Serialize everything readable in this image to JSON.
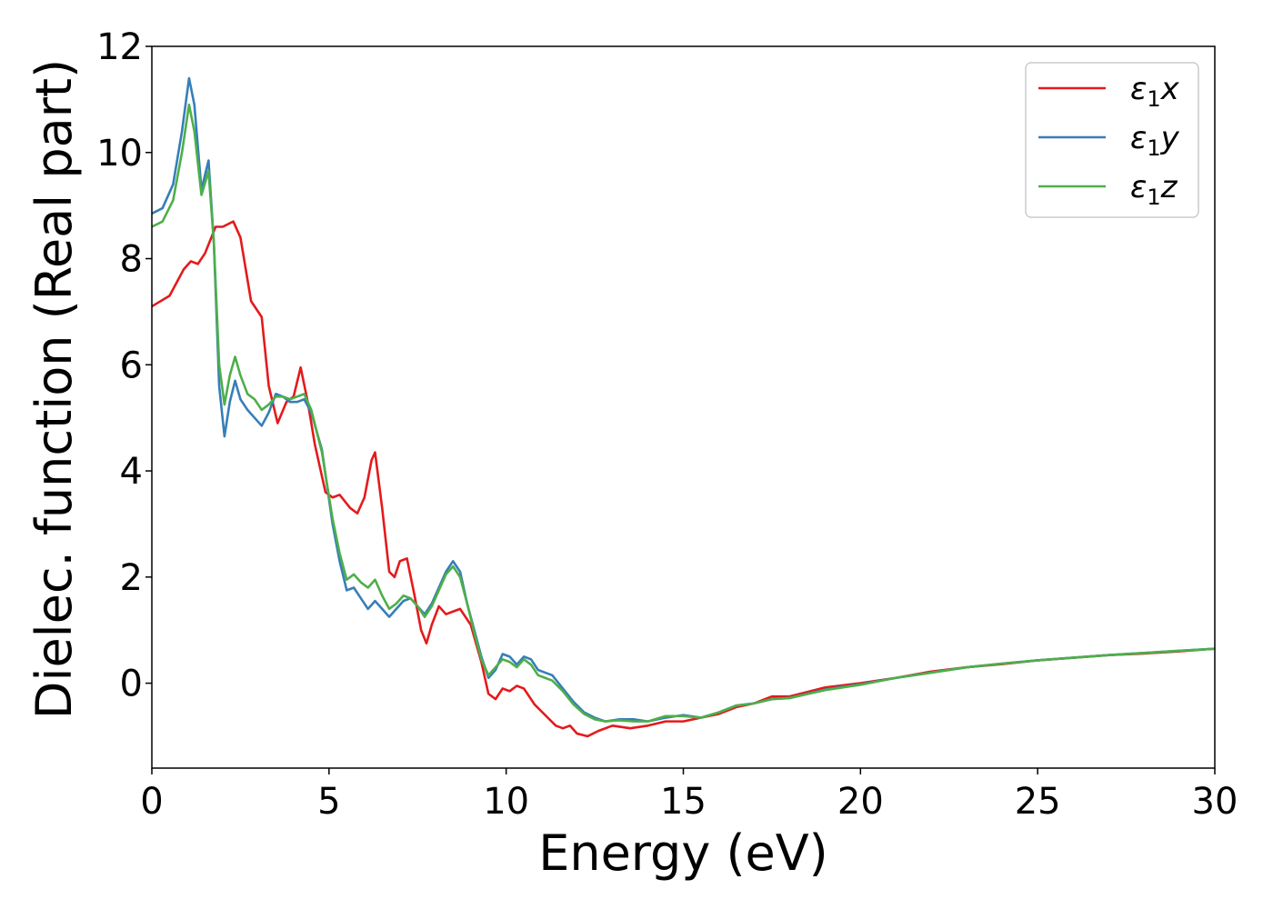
{
  "chart_data": {
    "type": "line",
    "xlabel": "Energy (eV)",
    "ylabel": "Dielec. function (Real part)",
    "xlim": [
      0,
      30
    ],
    "ylim": [
      -1.6,
      12
    ],
    "xticks": [
      0,
      5,
      10,
      15,
      20,
      25,
      30
    ],
    "yticks": [
      0,
      2,
      4,
      6,
      8,
      10,
      12
    ],
    "grid": false,
    "legend_position": "top-right",
    "legend_labels_mathtext": true,
    "series": [
      {
        "name": "ε₁x",
        "legend_base": "ε",
        "legend_sub": "1",
        "legend_var": "x",
        "color": "#e41a1c",
        "points": [
          [
            0,
            7.1
          ],
          [
            0.5,
            7.3
          ],
          [
            0.9,
            7.8
          ],
          [
            1.1,
            7.95
          ],
          [
            1.3,
            7.9
          ],
          [
            1.5,
            8.1
          ],
          [
            1.8,
            8.6
          ],
          [
            2.0,
            8.6
          ],
          [
            2.3,
            8.7
          ],
          [
            2.5,
            8.4
          ],
          [
            2.8,
            7.2
          ],
          [
            3.1,
            6.9
          ],
          [
            3.3,
            5.6
          ],
          [
            3.55,
            4.9
          ],
          [
            3.8,
            5.3
          ],
          [
            4.0,
            5.4
          ],
          [
            4.2,
            5.95
          ],
          [
            4.4,
            5.3
          ],
          [
            4.6,
            4.5
          ],
          [
            4.9,
            3.6
          ],
          [
            5.1,
            3.5
          ],
          [
            5.3,
            3.55
          ],
          [
            5.6,
            3.3
          ],
          [
            5.8,
            3.2
          ],
          [
            6.0,
            3.5
          ],
          [
            6.2,
            4.2
          ],
          [
            6.3,
            4.35
          ],
          [
            6.5,
            3.3
          ],
          [
            6.7,
            2.1
          ],
          [
            6.85,
            2.0
          ],
          [
            7.0,
            2.3
          ],
          [
            7.2,
            2.35
          ],
          [
            7.4,
            1.7
          ],
          [
            7.6,
            1.0
          ],
          [
            7.75,
            0.75
          ],
          [
            7.9,
            1.1
          ],
          [
            8.1,
            1.45
          ],
          [
            8.3,
            1.3
          ],
          [
            8.5,
            1.35
          ],
          [
            8.7,
            1.4
          ],
          [
            9.0,
            1.1
          ],
          [
            9.3,
            0.4
          ],
          [
            9.5,
            -0.2
          ],
          [
            9.7,
            -0.3
          ],
          [
            9.9,
            -0.1
          ],
          [
            10.1,
            -0.15
          ],
          [
            10.3,
            -0.05
          ],
          [
            10.5,
            -0.1
          ],
          [
            10.8,
            -0.4
          ],
          [
            11.1,
            -0.6
          ],
          [
            11.4,
            -0.8
          ],
          [
            11.6,
            -0.85
          ],
          [
            11.8,
            -0.8
          ],
          [
            12.0,
            -0.95
          ],
          [
            12.3,
            -1.0
          ],
          [
            12.6,
            -0.9
          ],
          [
            13.0,
            -0.8
          ],
          [
            13.5,
            -0.85
          ],
          [
            14.0,
            -0.8
          ],
          [
            14.5,
            -0.72
          ],
          [
            15.0,
            -0.72
          ],
          [
            15.5,
            -0.65
          ],
          [
            16.0,
            -0.58
          ],
          [
            16.5,
            -0.45
          ],
          [
            17.0,
            -0.38
          ],
          [
            17.5,
            -0.25
          ],
          [
            18.0,
            -0.25
          ],
          [
            19.0,
            -0.08
          ],
          [
            20.0,
            0.0
          ],
          [
            21.0,
            0.1
          ],
          [
            22.0,
            0.22
          ],
          [
            23.0,
            0.3
          ],
          [
            24.0,
            0.36
          ],
          [
            25.0,
            0.43
          ],
          [
            26.0,
            0.48
          ],
          [
            27.0,
            0.53
          ],
          [
            28.0,
            0.56
          ],
          [
            29.0,
            0.6
          ],
          [
            30.0,
            0.65
          ]
        ]
      },
      {
        "name": "ε₁y",
        "legend_base": "ε",
        "legend_sub": "1",
        "legend_var": "y",
        "color": "#377eb8",
        "points": [
          [
            0,
            8.85
          ],
          [
            0.3,
            8.95
          ],
          [
            0.6,
            9.4
          ],
          [
            0.85,
            10.4
          ],
          [
            1.05,
            11.4
          ],
          [
            1.2,
            10.9
          ],
          [
            1.4,
            9.3
          ],
          [
            1.6,
            9.85
          ],
          [
            1.75,
            8.3
          ],
          [
            1.9,
            5.6
          ],
          [
            2.05,
            4.65
          ],
          [
            2.2,
            5.3
          ],
          [
            2.35,
            5.7
          ],
          [
            2.5,
            5.35
          ],
          [
            2.7,
            5.15
          ],
          [
            2.9,
            5.0
          ],
          [
            3.1,
            4.85
          ],
          [
            3.3,
            5.1
          ],
          [
            3.5,
            5.45
          ],
          [
            3.7,
            5.4
          ],
          [
            3.9,
            5.3
          ],
          [
            4.1,
            5.3
          ],
          [
            4.3,
            5.35
          ],
          [
            4.5,
            5.1
          ],
          [
            4.8,
            4.4
          ],
          [
            5.1,
            3.0
          ],
          [
            5.3,
            2.3
          ],
          [
            5.5,
            1.75
          ],
          [
            5.7,
            1.8
          ],
          [
            5.9,
            1.6
          ],
          [
            6.1,
            1.4
          ],
          [
            6.3,
            1.55
          ],
          [
            6.5,
            1.4
          ],
          [
            6.7,
            1.25
          ],
          [
            6.9,
            1.4
          ],
          [
            7.1,
            1.55
          ],
          [
            7.3,
            1.6
          ],
          [
            7.5,
            1.45
          ],
          [
            7.7,
            1.3
          ],
          [
            7.9,
            1.5
          ],
          [
            8.1,
            1.8
          ],
          [
            8.3,
            2.1
          ],
          [
            8.5,
            2.3
          ],
          [
            8.7,
            2.1
          ],
          [
            8.9,
            1.5
          ],
          [
            9.1,
            1.0
          ],
          [
            9.3,
            0.5
          ],
          [
            9.5,
            0.1
          ],
          [
            9.7,
            0.25
          ],
          [
            9.9,
            0.55
          ],
          [
            10.1,
            0.5
          ],
          [
            10.3,
            0.35
          ],
          [
            10.5,
            0.5
          ],
          [
            10.7,
            0.45
          ],
          [
            10.9,
            0.25
          ],
          [
            11.1,
            0.2
          ],
          [
            11.3,
            0.15
          ],
          [
            11.6,
            -0.1
          ],
          [
            11.9,
            -0.35
          ],
          [
            12.2,
            -0.55
          ],
          [
            12.5,
            -0.65
          ],
          [
            12.8,
            -0.72
          ],
          [
            13.2,
            -0.68
          ],
          [
            13.6,
            -0.68
          ],
          [
            14.0,
            -0.72
          ],
          [
            14.5,
            -0.65
          ],
          [
            15.0,
            -0.6
          ],
          [
            15.5,
            -0.65
          ],
          [
            16.0,
            -0.55
          ],
          [
            16.5,
            -0.42
          ],
          [
            17.0,
            -0.38
          ],
          [
            17.5,
            -0.3
          ],
          [
            18.0,
            -0.28
          ],
          [
            19.0,
            -0.12
          ],
          [
            20.0,
            -0.02
          ],
          [
            21.0,
            0.1
          ],
          [
            22.0,
            0.2
          ],
          [
            23.0,
            0.3
          ],
          [
            24.0,
            0.37
          ],
          [
            25.0,
            0.43
          ],
          [
            26.0,
            0.48
          ],
          [
            27.0,
            0.53
          ],
          [
            28.0,
            0.57
          ],
          [
            29.0,
            0.61
          ],
          [
            30.0,
            0.65
          ]
        ]
      },
      {
        "name": "ε₁z",
        "legend_base": "ε",
        "legend_sub": "1",
        "legend_var": "z",
        "color": "#4daf4a",
        "points": [
          [
            0,
            8.6
          ],
          [
            0.3,
            8.7
          ],
          [
            0.6,
            9.1
          ],
          [
            0.85,
            10.0
          ],
          [
            1.05,
            10.9
          ],
          [
            1.2,
            10.4
          ],
          [
            1.4,
            9.2
          ],
          [
            1.6,
            9.65
          ],
          [
            1.75,
            8.3
          ],
          [
            1.9,
            6.0
          ],
          [
            2.05,
            5.25
          ],
          [
            2.2,
            5.8
          ],
          [
            2.35,
            6.15
          ],
          [
            2.5,
            5.8
          ],
          [
            2.7,
            5.45
          ],
          [
            2.9,
            5.35
          ],
          [
            3.1,
            5.15
          ],
          [
            3.3,
            5.25
          ],
          [
            3.5,
            5.4
          ],
          [
            3.7,
            5.4
          ],
          [
            3.9,
            5.35
          ],
          [
            4.1,
            5.4
          ],
          [
            4.3,
            5.45
          ],
          [
            4.5,
            5.15
          ],
          [
            4.8,
            4.35
          ],
          [
            5.1,
            3.1
          ],
          [
            5.3,
            2.45
          ],
          [
            5.5,
            1.95
          ],
          [
            5.7,
            2.05
          ],
          [
            5.9,
            1.9
          ],
          [
            6.1,
            1.8
          ],
          [
            6.3,
            1.95
          ],
          [
            6.5,
            1.65
          ],
          [
            6.7,
            1.4
          ],
          [
            6.9,
            1.5
          ],
          [
            7.1,
            1.65
          ],
          [
            7.3,
            1.6
          ],
          [
            7.5,
            1.45
          ],
          [
            7.7,
            1.25
          ],
          [
            7.9,
            1.45
          ],
          [
            8.1,
            1.75
          ],
          [
            8.3,
            2.05
          ],
          [
            8.5,
            2.2
          ],
          [
            8.7,
            2.0
          ],
          [
            8.9,
            1.5
          ],
          [
            9.1,
            0.95
          ],
          [
            9.3,
            0.45
          ],
          [
            9.5,
            0.15
          ],
          [
            9.7,
            0.3
          ],
          [
            9.9,
            0.45
          ],
          [
            10.1,
            0.4
          ],
          [
            10.3,
            0.3
          ],
          [
            10.5,
            0.45
          ],
          [
            10.7,
            0.35
          ],
          [
            10.9,
            0.15
          ],
          [
            11.1,
            0.1
          ],
          [
            11.3,
            0.05
          ],
          [
            11.6,
            -0.15
          ],
          [
            11.9,
            -0.4
          ],
          [
            12.2,
            -0.58
          ],
          [
            12.5,
            -0.68
          ],
          [
            12.8,
            -0.72
          ],
          [
            13.2,
            -0.7
          ],
          [
            13.6,
            -0.72
          ],
          [
            14.0,
            -0.72
          ],
          [
            14.5,
            -0.62
          ],
          [
            15.0,
            -0.62
          ],
          [
            15.5,
            -0.65
          ],
          [
            16.0,
            -0.55
          ],
          [
            16.5,
            -0.42
          ],
          [
            17.0,
            -0.38
          ],
          [
            17.5,
            -0.3
          ],
          [
            18.0,
            -0.28
          ],
          [
            19.0,
            -0.13
          ],
          [
            20.0,
            -0.03
          ],
          [
            21.0,
            0.1
          ],
          [
            22.0,
            0.2
          ],
          [
            23.0,
            0.3
          ],
          [
            24.0,
            0.37
          ],
          [
            25.0,
            0.43
          ],
          [
            26.0,
            0.48
          ],
          [
            27.0,
            0.53
          ],
          [
            28.0,
            0.57
          ],
          [
            29.0,
            0.61
          ],
          [
            30.0,
            0.65
          ]
        ]
      }
    ]
  }
}
